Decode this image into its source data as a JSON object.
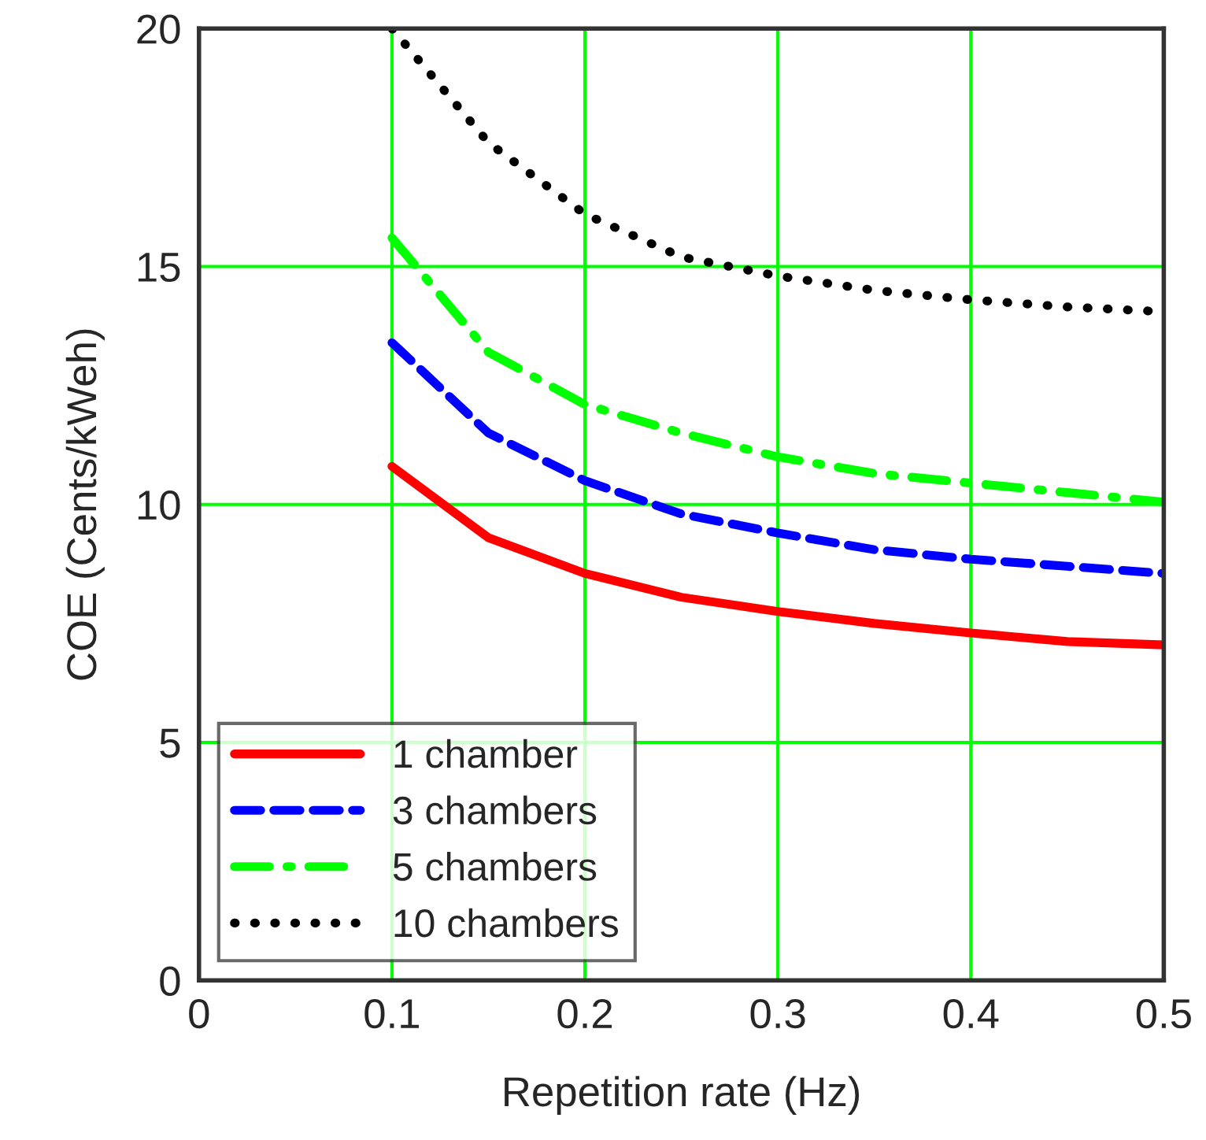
{
  "chart_data": {
    "type": "line",
    "xlabel": "Repetition rate (Hz)",
    "ylabel": "COE (Cents/kWeh)",
    "x": [
      0.1,
      0.15,
      0.2,
      0.25,
      0.3,
      0.35,
      0.4,
      0.45,
      0.5
    ],
    "series": [
      {
        "name": "1 chamber",
        "color": "#ff0000",
        "line_style": "solid",
        "values": [
          10.8,
          9.3,
          8.55,
          8.05,
          7.75,
          7.5,
          7.3,
          7.12,
          7.05
        ]
      },
      {
        "name": "3 chambers",
        "color": "#0000ff",
        "line_style": "dashed",
        "values": [
          13.4,
          11.5,
          10.5,
          9.8,
          9.4,
          9.05,
          8.85,
          8.7,
          8.55
        ]
      },
      {
        "name": "5 chambers",
        "color": "#00ff00",
        "line_style": "dashdot",
        "values": [
          15.6,
          13.2,
          12.1,
          11.5,
          11.0,
          10.65,
          10.45,
          10.25,
          10.05
        ]
      },
      {
        "name": "10 chambers",
        "color": "#000000",
        "line_style": "dotted",
        "values": [
          20.0,
          17.6,
          16.1,
          15.2,
          14.8,
          14.5,
          14.3,
          14.15,
          14.05
        ]
      }
    ],
    "xlim": [
      0,
      0.5
    ],
    "ylim": [
      0,
      20
    ],
    "xticks": [
      0,
      0.1,
      0.2,
      0.3,
      0.4,
      0.5
    ],
    "yticks": [
      0,
      5,
      10,
      15,
      20
    ],
    "grid": true,
    "legend": "bottom left",
    "marker": "none"
  }
}
